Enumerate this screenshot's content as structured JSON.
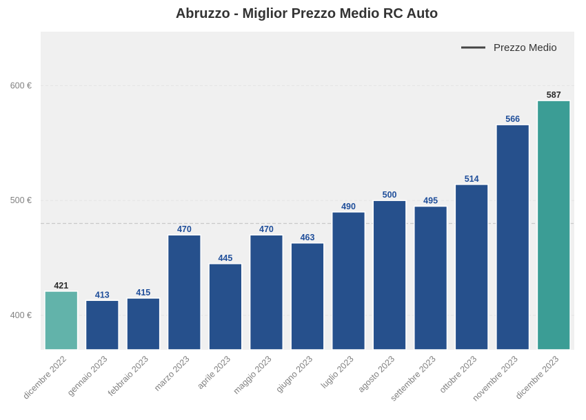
{
  "chart_data": {
    "type": "bar",
    "title": "Abruzzo - Miglior Prezzo Medio RC Auto",
    "xlabel": "",
    "ylabel": "",
    "categories": [
      "dicembre 2022",
      "gennaio 2023",
      "febbraio 2023",
      "marzo 2023",
      "aprile 2023",
      "maggio 2023",
      "giugno 2023",
      "luglio 2023",
      "agosto 2023",
      "settembre 2023",
      "ottobre 2023",
      "novembre 2023",
      "dicembre 2023"
    ],
    "values": [
      421,
      413,
      415,
      470,
      445,
      470,
      463,
      490,
      500,
      495,
      514,
      566,
      587
    ],
    "value_labels": [
      "421",
      "413",
      "415",
      "470",
      "445",
      "470",
      "463",
      "490",
      "500",
      "495",
      "514",
      "566",
      "587"
    ],
    "ylim": [
      370,
      647
    ],
    "yticks": [
      400,
      500,
      600
    ],
    "ytick_labels": [
      "400 €",
      "500 €",
      "600 €"
    ],
    "average_line": 480,
    "legend": {
      "label": "Prezzo Medio",
      "position": "top-right"
    },
    "grid": true,
    "colors": {
      "bar_default": "#26508c",
      "bar_first": "#62b3aa",
      "bar_last": "#3b9d95",
      "label_default": "#1f4e9a",
      "label_endpoint": "#2b2b2b",
      "plot_background": "#f0f0f0",
      "average_line": "#c8c8c8"
    }
  }
}
